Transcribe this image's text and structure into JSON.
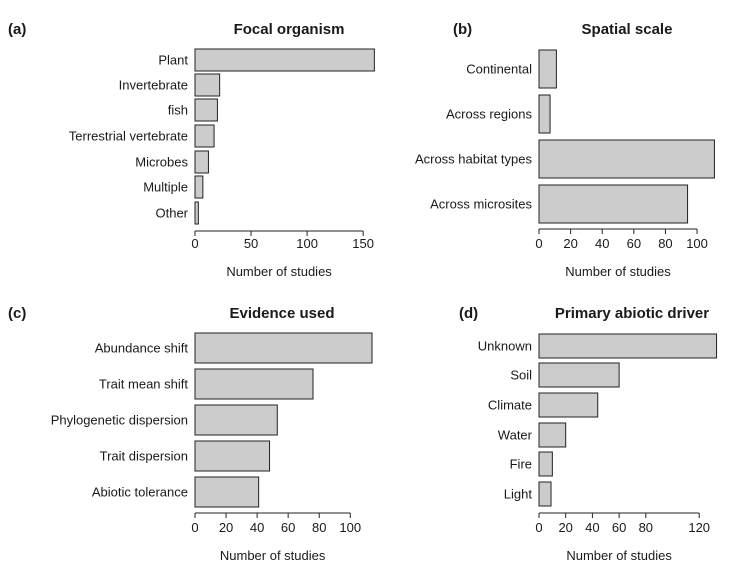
{
  "chart_data": [
    {
      "type": "bar",
      "orientation": "horizontal",
      "panel_label": "(a)",
      "title": "Focal organism",
      "categories": [
        "Plant",
        "Invertebrate",
        "fish",
        "Terrestrial vertebrate",
        "Microbes",
        "Multiple",
        "Other"
      ],
      "values": [
        160,
        22,
        20,
        17,
        12,
        7,
        3
      ],
      "xlabel": "Number of studies",
      "xticks": [
        0,
        50,
        100,
        150
      ],
      "xlim": [
        0,
        160
      ]
    },
    {
      "type": "bar",
      "orientation": "horizontal",
      "panel_label": "(b)",
      "title": "Spatial scale",
      "categories": [
        "Continental",
        "Across regions",
        "Across habitat types",
        "Across microsites"
      ],
      "values": [
        11,
        7,
        111,
        94
      ],
      "xlabel": "Number of studies",
      "xticks": [
        0,
        20,
        40,
        60,
        80,
        100
      ],
      "xlim": [
        0,
        111
      ]
    },
    {
      "type": "bar",
      "orientation": "horizontal",
      "panel_label": "(c)",
      "title": "Evidence used",
      "categories": [
        "Abundance shift",
        "Trait mean shift",
        "Phylogenetic dispersion",
        "Trait dispersion",
        "Abiotic tolerance"
      ],
      "values": [
        114,
        76,
        53,
        48,
        41
      ],
      "xlabel": "Number of studies",
      "xticks": [
        0,
        20,
        40,
        60,
        80,
        100
      ],
      "xlim": [
        0,
        114
      ]
    },
    {
      "type": "bar",
      "orientation": "horizontal",
      "panel_label": "(d)",
      "title": "Primary abiotic driver",
      "categories": [
        "Unknown",
        "Soil",
        "Climate",
        "Water",
        "Fire",
        "Light"
      ],
      "values": [
        133,
        60,
        44,
        20,
        10,
        9
      ],
      "xlabel": "Number of studies",
      "xticks": [
        0,
        20,
        40,
        60,
        80,
        120
      ],
      "xlim": [
        0,
        133
      ]
    }
  ]
}
